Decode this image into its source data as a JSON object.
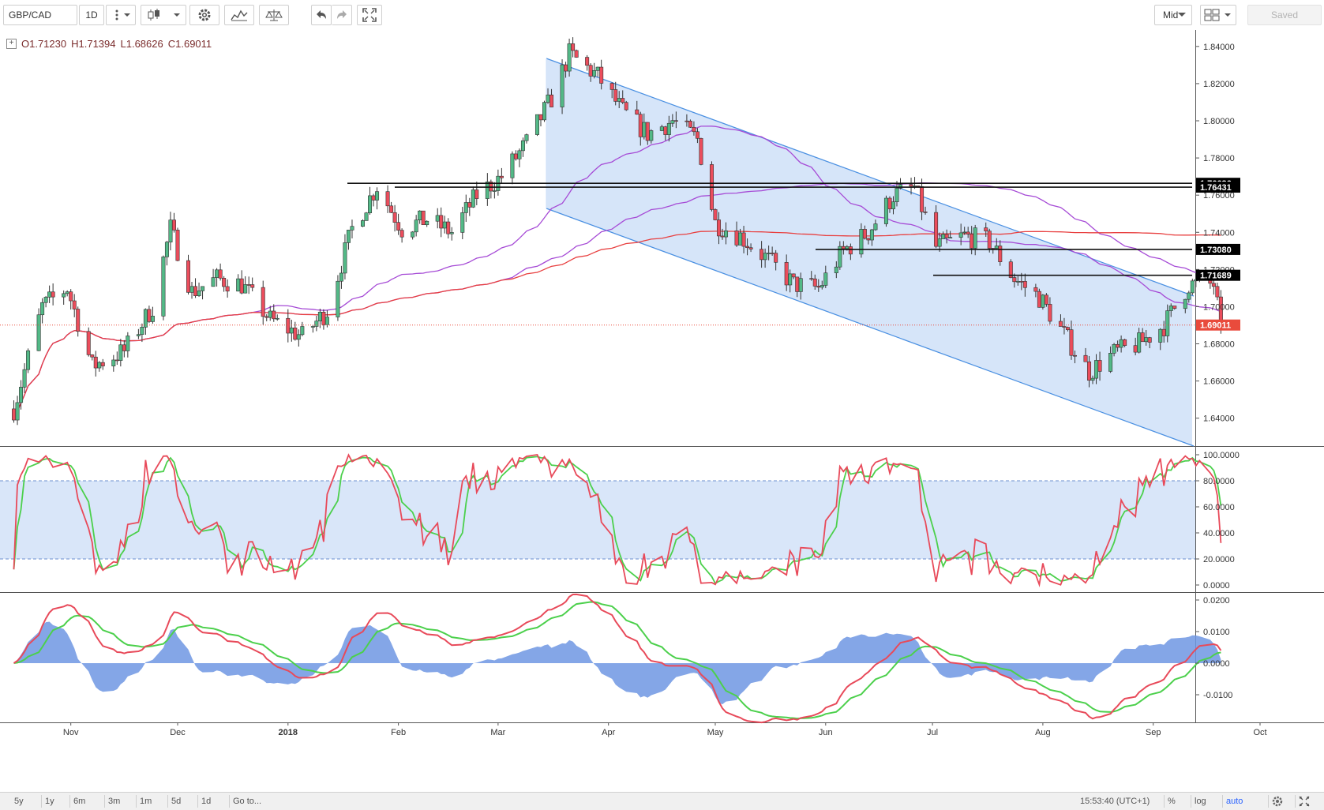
{
  "toolbar": {
    "symbol": "GBP/CAD",
    "interval": "1D",
    "price_source": "Mid",
    "saved_label": "Saved",
    "icons": [
      "vertical-dots-icon",
      "candles-icon",
      "gear-icon",
      "compare-icon",
      "scales-icon",
      "undo-icon",
      "redo-icon",
      "fullscreen-icon",
      "layout-grid-icon"
    ]
  },
  "legend": {
    "open": "O1.71230",
    "high": "H1.71394",
    "low": "L1.68626",
    "close": "C1.69011"
  },
  "price_axis": {
    "ticks": [
      "1.84000",
      "1.82000",
      "1.80000",
      "1.78000",
      "1.76000",
      "1.74000",
      "1.72000",
      "1.70000",
      "1.68000",
      "1.66000",
      "1.64000"
    ],
    "labels": [
      {
        "text": "1.76636",
        "color": "#000000"
      },
      {
        "text": "1.76431",
        "color": "#000000"
      },
      {
        "text": "1.73080",
        "color": "#000000"
      },
      {
        "text": "1.71689",
        "color": "#000000"
      },
      {
        "text": "1.69011",
        "color": "#e94b3c"
      }
    ]
  },
  "stoch_axis": {
    "ticks": [
      "100.0000",
      "80.0000",
      "60.0000",
      "40.0000",
      "20.0000",
      "0.0000"
    ]
  },
  "macd_axis": {
    "ticks": [
      "0.0200",
      "0.0100",
      "0.0000",
      "-0.0100"
    ]
  },
  "time_axis": {
    "labels": [
      "Nov",
      "Dec",
      "2018",
      "Feb",
      "Mar",
      "Apr",
      "May",
      "Jun",
      "Jul",
      "Aug",
      "Sep",
      "Oct"
    ]
  },
  "bottombar": {
    "ranges": [
      "5y",
      "1y",
      "6m",
      "3m",
      "1m",
      "5d",
      "1d"
    ],
    "goto": "Go to...",
    "clock": "15:53:40 (UTC+1)",
    "percent": "%",
    "log": "log",
    "auto": "auto"
  },
  "colors": {
    "up": "#53b987",
    "down": "#eb4d5c",
    "channel": "#4a90e2",
    "ma_purple": "#a64bd6",
    "ma_red": "#e84040",
    "stoch_k": "#e84a5a",
    "stoch_d": "#4cd04c",
    "macd_hist": "#6f97e3"
  },
  "chart_data": {
    "type": "candlestick",
    "symbol": "GBP/CAD",
    "interval": "1D",
    "price_range": [
      1.625,
      1.848
    ],
    "last_close": 1.69011,
    "horizontal_levels": [
      1.76636,
      1.76431,
      1.7308,
      1.71689
    ],
    "closes_anchor": [
      [
        "2017-10-16",
        1.645
      ],
      [
        "2017-10-24",
        1.7
      ],
      [
        "2017-10-31",
        1.71
      ],
      [
        "2017-11-07",
        1.668
      ],
      [
        "2017-11-16",
        1.676
      ],
      [
        "2017-11-24",
        1.7
      ],
      [
        "2017-11-29",
        1.742
      ],
      [
        "2017-12-05",
        1.708
      ],
      [
        "2017-12-12",
        1.715
      ],
      [
        "2017-12-19",
        1.712
      ],
      [
        "2017-12-27",
        1.693
      ],
      [
        "2018-01-05",
        1.684
      ],
      [
        "2018-01-12",
        1.698
      ],
      [
        "2018-01-19",
        1.742
      ],
      [
        "2018-01-26",
        1.765
      ],
      [
        "2018-02-02",
        1.742
      ],
      [
        "2018-02-09",
        1.747
      ],
      [
        "2018-02-16",
        1.74
      ],
      [
        "2018-02-23",
        1.76
      ],
      [
        "2018-03-02",
        1.77
      ],
      [
        "2018-03-09",
        1.788
      ],
      [
        "2018-03-16",
        1.812
      ],
      [
        "2018-03-21",
        1.836
      ],
      [
        "2018-03-29",
        1.824
      ],
      [
        "2018-04-05",
        1.805
      ],
      [
        "2018-04-12",
        1.793
      ],
      [
        "2018-04-19",
        1.8
      ],
      [
        "2018-04-26",
        1.79
      ],
      [
        "2018-05-01",
        1.745
      ],
      [
        "2018-05-08",
        1.738
      ],
      [
        "2018-05-16",
        1.725
      ],
      [
        "2018-05-23",
        1.712
      ],
      [
        "2018-05-30",
        1.71
      ],
      [
        "2018-06-06",
        1.73
      ],
      [
        "2018-06-13",
        1.74
      ],
      [
        "2018-06-20",
        1.76
      ],
      [
        "2018-06-26",
        1.764
      ],
      [
        "2018-07-02",
        1.732
      ],
      [
        "2018-07-10",
        1.738
      ],
      [
        "2018-07-17",
        1.735
      ],
      [
        "2018-07-24",
        1.715
      ],
      [
        "2018-07-31",
        1.705
      ],
      [
        "2018-08-07",
        1.685
      ],
      [
        "2018-08-14",
        1.665
      ],
      [
        "2018-08-21",
        1.675
      ],
      [
        "2018-08-28",
        1.68
      ],
      [
        "2018-09-04",
        1.69
      ],
      [
        "2018-09-11",
        1.712
      ],
      [
        "2018-09-18",
        1.712
      ],
      [
        "2018-09-20",
        1.69
      ]
    ],
    "stochastic": {
      "range": [
        0,
        100
      ],
      "band": [
        20,
        80
      ]
    },
    "macd": {
      "range": [
        -0.019,
        0.021
      ]
    }
  }
}
